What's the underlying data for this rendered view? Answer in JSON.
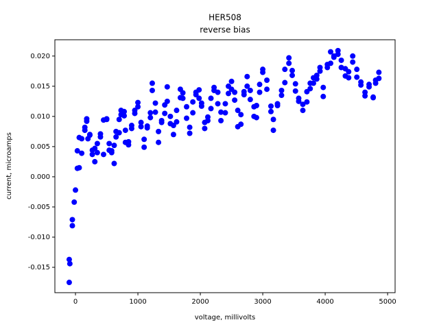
{
  "chart_data": {
    "type": "scatter",
    "title": "HER508",
    "subtitle": "reverse bias",
    "x_label": "voltage, millivolts",
    "y_label": "current, microamps",
    "color": "#0000ff",
    "xlim": [
      -330,
      5120
    ],
    "ylim": [
      -0.0192,
      0.0227
    ],
    "xticks": [
      0,
      1000,
      2000,
      3000,
      4000,
      5000
    ],
    "yticks": [
      {
        "value": -0.015,
        "label": "-0.015"
      },
      {
        "value": -0.01,
        "label": "-0.010"
      },
      {
        "value": -0.005,
        "label": "-0.005"
      },
      {
        "value": 0,
        "label": "0.000"
      },
      {
        "value": 0.005,
        "label": "0.005"
      },
      {
        "value": 0.01,
        "label": "0.010"
      },
      {
        "value": 0.015,
        "label": "0.015"
      },
      {
        "value": 0.02,
        "label": "0.020"
      }
    ],
    "x": [
      -100,
      -100,
      -90,
      -50,
      -50,
      -20,
      0,
      30,
      30,
      60,
      60,
      100,
      100,
      150,
      150,
      180,
      180,
      200,
      230,
      230,
      270,
      270,
      310,
      310,
      350,
      350,
      400,
      400,
      450,
      450,
      500,
      500,
      540,
      540,
      580,
      580,
      620,
      620,
      650,
      650,
      700,
      700,
      730,
      730,
      780,
      780,
      800,
      800,
      850,
      850,
      900,
      900,
      950,
      950,
      1000,
      1000,
      1050,
      1050,
      1100,
      1100,
      1150,
      1150,
      1200,
      1200,
      1230,
      1230,
      1280,
      1280,
      1330,
      1330,
      1380,
      1380,
      1430,
      1430,
      1470,
      1470,
      1520,
      1520,
      1570,
      1570,
      1620,
      1620,
      1680,
      1680,
      1720,
      1720,
      1780,
      1780,
      1830,
      1830,
      1880,
      1880,
      1930,
      1930,
      1980,
      1980,
      2020,
      2020,
      2070,
      2070,
      2120,
      2120,
      2170,
      2170,
      2220,
      2220,
      2280,
      2280,
      2330,
      2330,
      2400,
      2400,
      2450,
      2450,
      2500,
      2500,
      2550,
      2550,
      2600,
      2600,
      2650,
      2650,
      2700,
      2700,
      2750,
      2750,
      2800,
      2800,
      2860,
      2860,
      2900,
      2900,
      2950,
      2950,
      3000,
      3000,
      3066,
      3066,
      3131,
      3131,
      3170,
      3170,
      3236,
      3236,
      3301,
      3301,
      3354,
      3354,
      3419,
      3419,
      3472,
      3472,
      3524,
      3524,
      3576,
      3576,
      3642,
      3642,
      3707,
      3707,
      3760,
      3760,
      3812,
      3812,
      3865,
      3865,
      3917,
      3917,
      3969,
      3969,
      4035,
      4035,
      4087,
      4087,
      4140,
      4140,
      4205,
      4205,
      4258,
      4258,
      4323,
      4323,
      4376,
      4376,
      4441,
      4441,
      4507,
      4507,
      4572,
      4572,
      4638,
      4638,
      4703,
      4703,
      4769,
      4769,
      4808,
      4808,
      4860,
      4860
    ],
    "values": [
      -0.0137,
      -0.0175,
      -0.0144,
      -0.0081,
      -0.0071,
      -0.0042,
      -0.0022,
      0.0014,
      0.0043,
      0.0015,
      0.0065,
      0.0039,
      0.0063,
      0.0082,
      0.0077,
      0.0096,
      0.0092,
      0.0063,
      0.007,
      0.0069,
      0.0037,
      0.0044,
      0.0025,
      0.0047,
      0.004,
      0.0055,
      0.0071,
      0.0066,
      0.0094,
      0.0037,
      0.0096,
      0.0095,
      0.0055,
      0.0044,
      0.0043,
      0.004,
      0.0022,
      0.0052,
      0.0075,
      0.0066,
      0.0095,
      0.0073,
      0.011,
      0.0103,
      0.0108,
      0.0101,
      0.0077,
      0.0057,
      0.0053,
      0.0058,
      0.008,
      0.0085,
      0.0105,
      0.011,
      0.0123,
      0.0116,
      0.009,
      0.0083,
      0.0062,
      0.0049,
      0.0081,
      0.0084,
      0.0098,
      0.0106,
      0.0143,
      0.0155,
      0.0122,
      0.0107,
      0.0075,
      0.0057,
      0.009,
      0.0093,
      0.0119,
      0.0105,
      0.0149,
      0.0125,
      0.01,
      0.0088,
      0.007,
      0.0085,
      0.011,
      0.0091,
      0.0131,
      0.0145,
      0.0139,
      0.013,
      0.0116,
      0.0097,
      0.0072,
      0.0082,
      0.0106,
      0.0124,
      0.0136,
      0.014,
      0.0144,
      0.013,
      0.0122,
      0.0117,
      0.009,
      0.008,
      0.0099,
      0.0093,
      0.0113,
      0.013,
      0.0148,
      0.0143,
      0.014,
      0.0121,
      0.0107,
      0.0093,
      0.0106,
      0.0121,
      0.0138,
      0.015,
      0.0158,
      0.0145,
      0.014,
      0.0127,
      0.011,
      0.0083,
      0.0087,
      0.0103,
      0.0141,
      0.0136,
      0.0166,
      0.015,
      0.0143,
      0.0128,
      0.0116,
      0.01,
      0.0098,
      0.0118,
      0.014,
      0.0153,
      0.0173,
      0.0178,
      0.016,
      0.0145,
      0.0117,
      0.0108,
      0.0077,
      0.0095,
      0.0121,
      0.0118,
      0.0135,
      0.0143,
      0.0156,
      0.0178,
      0.0197,
      0.0188,
      0.0176,
      0.0168,
      0.0154,
      0.0142,
      0.0125,
      0.013,
      0.011,
      0.012,
      0.0124,
      0.0141,
      0.0146,
      0.0155,
      0.0164,
      0.0155,
      0.0168,
      0.0162,
      0.0175,
      0.0181,
      0.0148,
      0.0133,
      0.0181,
      0.0186,
      0.0188,
      0.0207,
      0.0198,
      0.02,
      0.0209,
      0.0203,
      0.0193,
      0.0181,
      0.0179,
      0.0167,
      0.0164,
      0.0174,
      0.019,
      0.02,
      0.0178,
      0.0165,
      0.0157,
      0.0152,
      0.014,
      0.0134,
      0.0149,
      0.0153,
      0.0132,
      0.0131,
      0.0155,
      0.016,
      0.0173,
      0.0163
    ]
  }
}
